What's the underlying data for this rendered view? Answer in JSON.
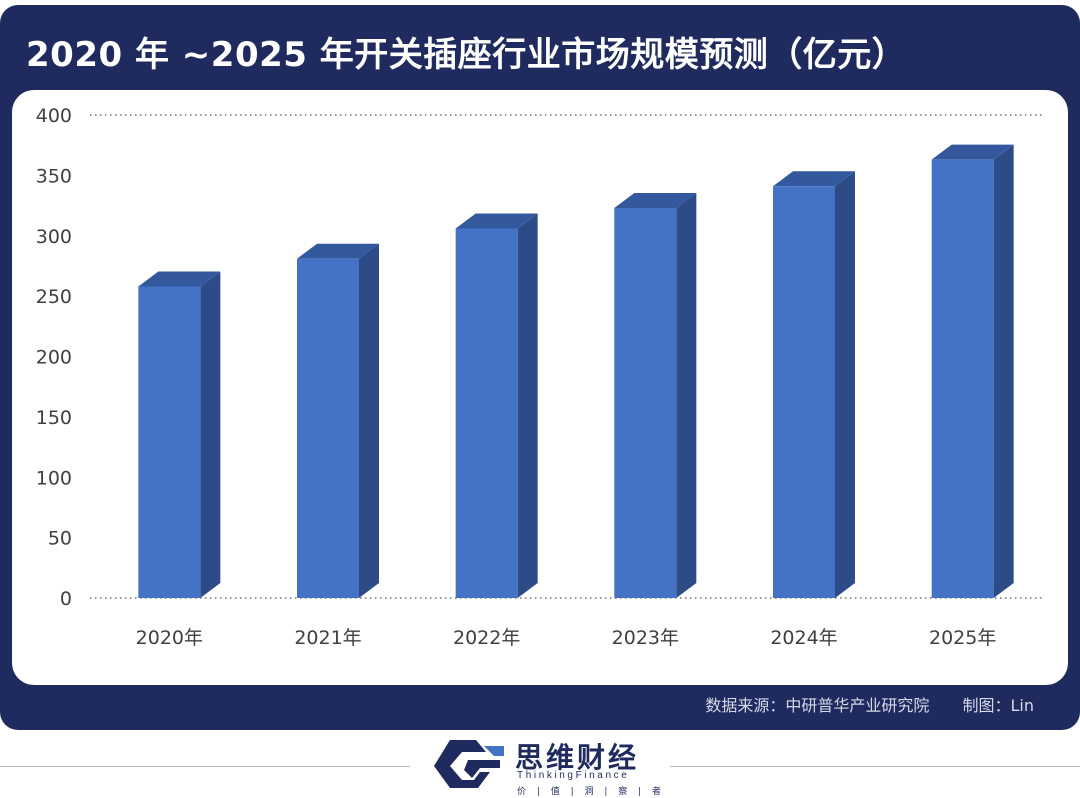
{
  "header": {
    "title": "2020 年 ~2025 年开关插座行业市场规模预测（亿元）"
  },
  "chart_data": {
    "type": "bar",
    "title": "2020 年 ~2025 年开关插座行业市场规模预测（亿元）",
    "categories": [
      "2020年",
      "2021年",
      "2022年",
      "2023年",
      "2024年",
      "2025年"
    ],
    "values": [
      258,
      281,
      306,
      323,
      341,
      363
    ],
    "ylim": [
      0,
      400
    ],
    "yticks": [
      0,
      50,
      100,
      150,
      200,
      250,
      300,
      350,
      400
    ],
    "xlabel": "",
    "ylabel": "",
    "grid": false,
    "legend": "none",
    "colors": {
      "front": "#4472c4",
      "side": "#2d4b86",
      "top": "#34589e"
    }
  },
  "footer": {
    "source": "数据来源：中研普华产业研究院",
    "author": "制图：Lin"
  },
  "brand": {
    "name": "思维财经",
    "english": "ThinkingFinance",
    "motto": "价 | 值 | 洞 | 察 | 者",
    "icon": "thinking-finance-logo-icon"
  },
  "colors": {
    "frame": "#1f2a5e",
    "panel": "#ffffff"
  }
}
